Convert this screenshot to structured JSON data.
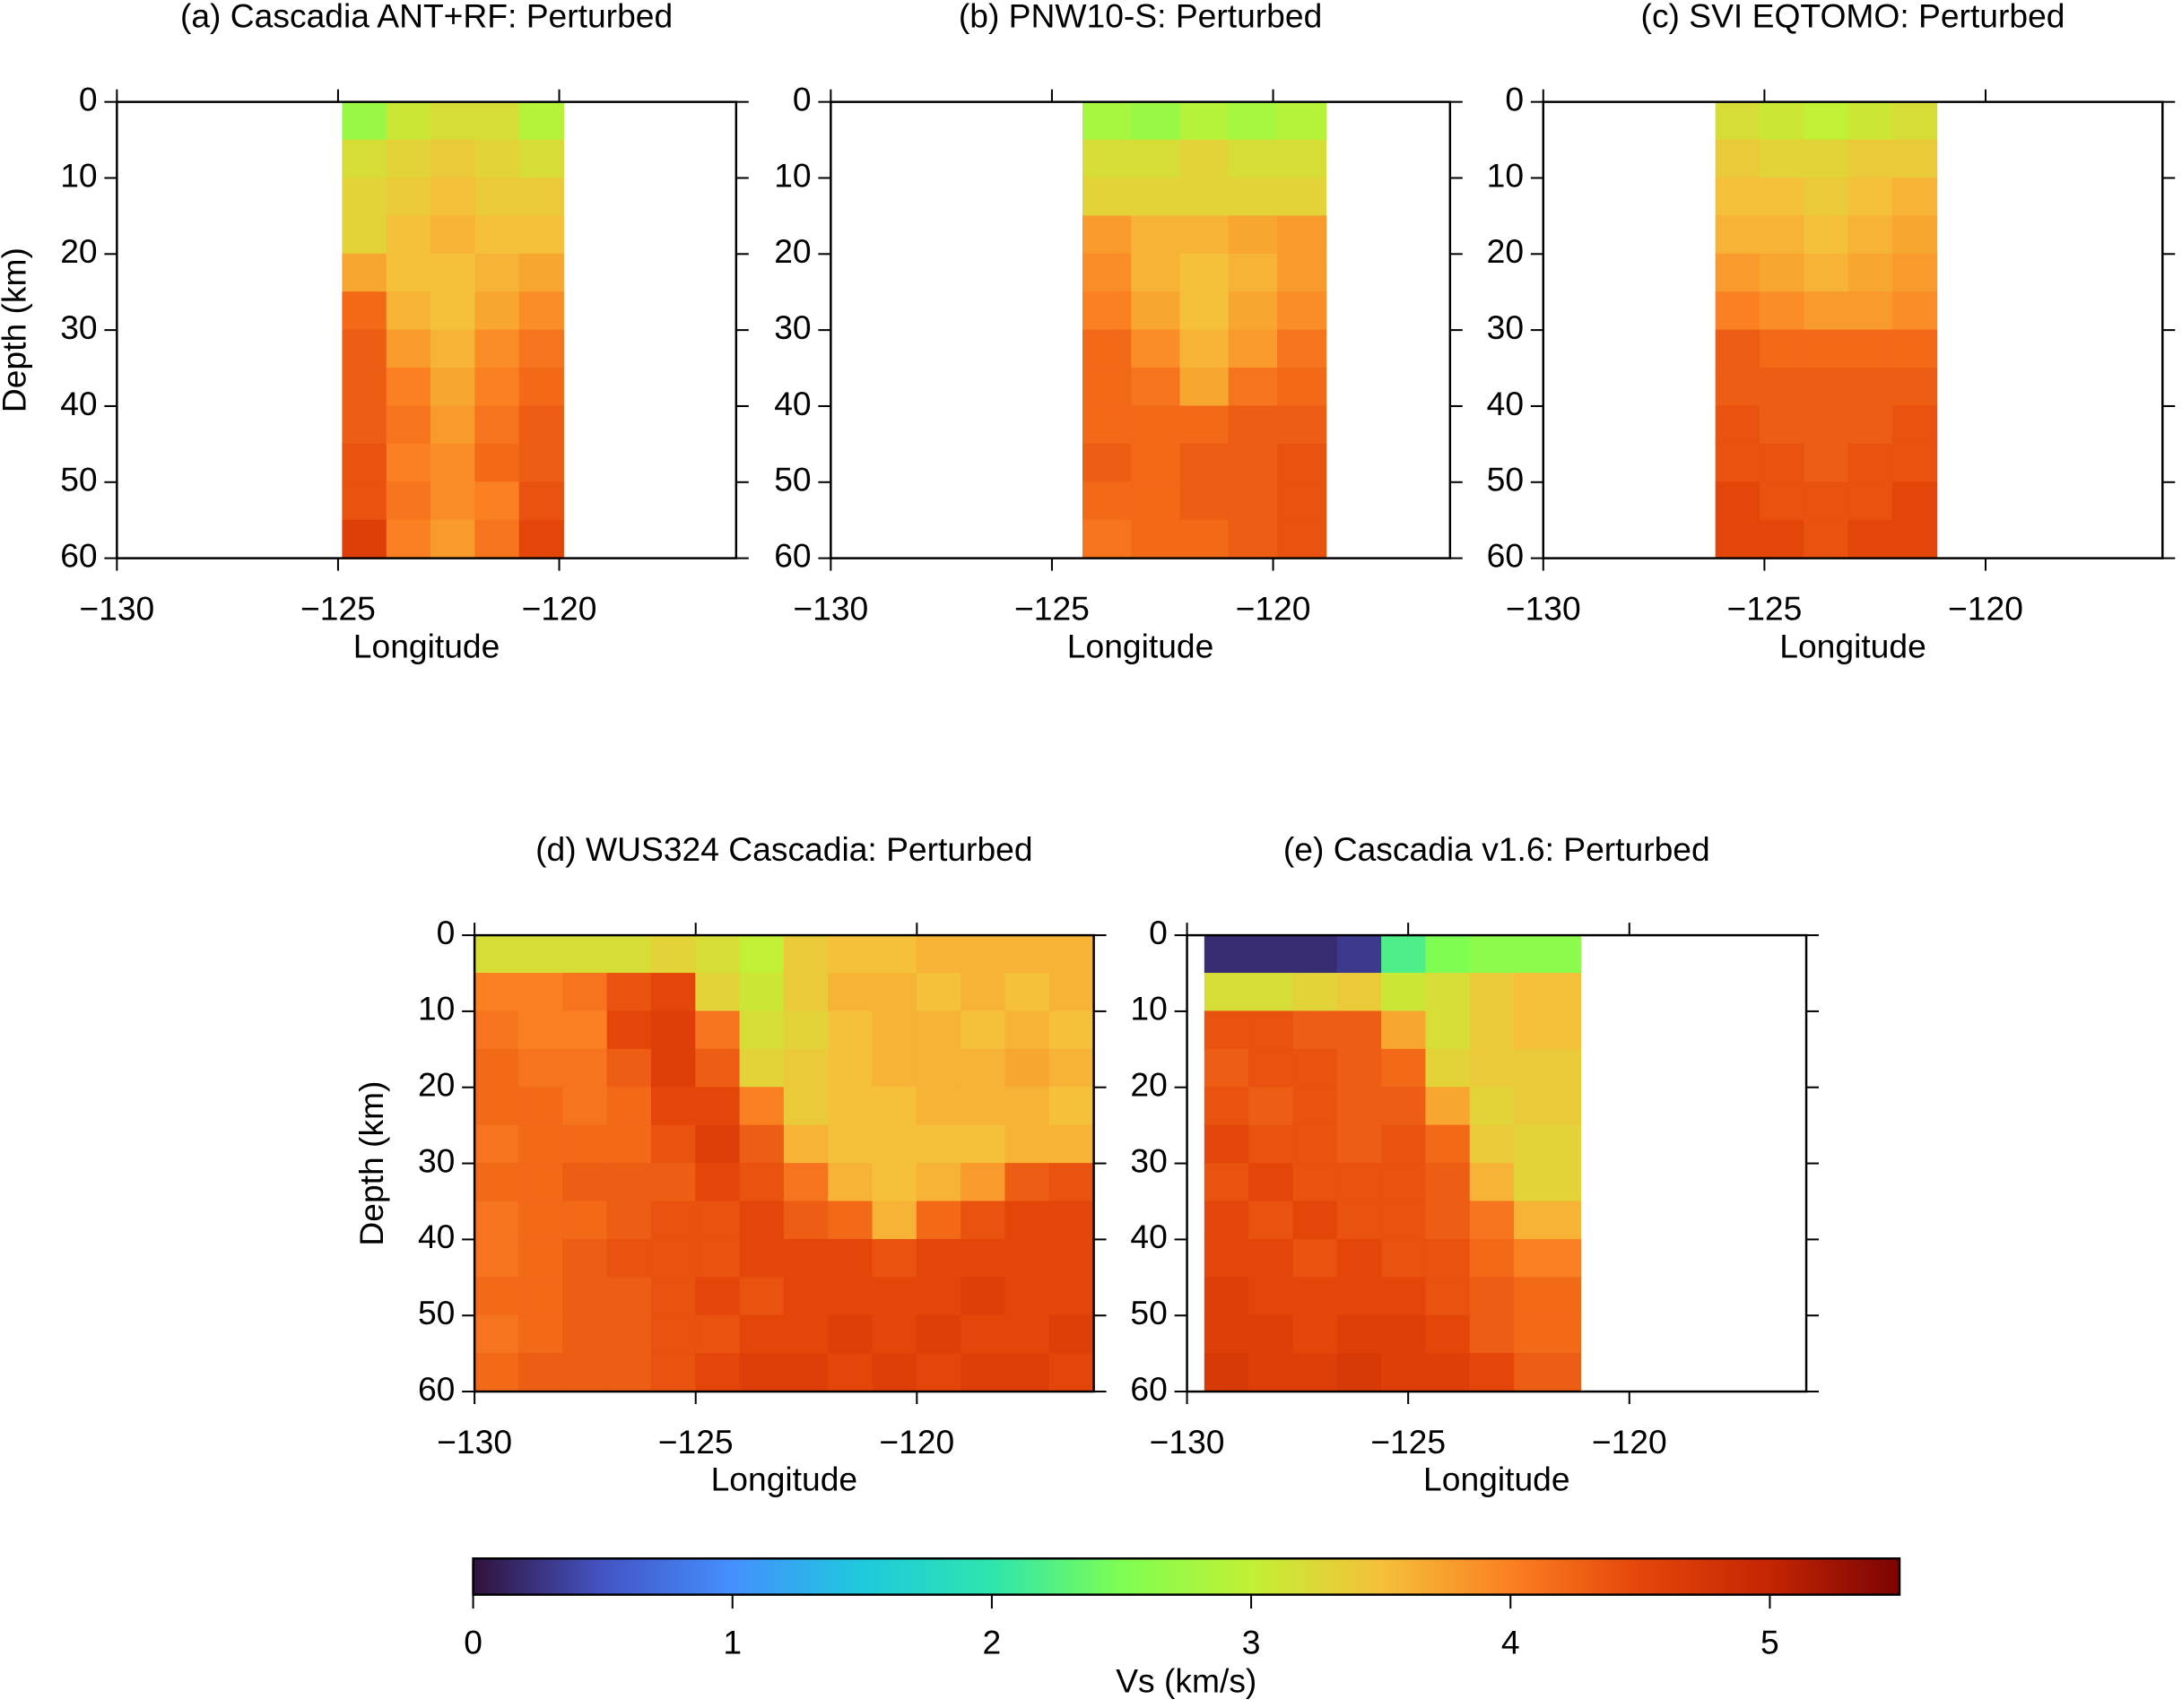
{
  "chart_data": [
    {
      "type": "heatmap",
      "title": "(a) Cascadia ANT+RF: Perturbed",
      "x_label": "Longitude",
      "y_label": "Depth (km)",
      "xlim": [
        -130,
        -116
      ],
      "ylim": [
        0,
        60
      ],
      "y_reversed": true,
      "xticks": [
        {
          "value": -130,
          "label": "−130"
        },
        {
          "value": -125,
          "label": "−125"
        },
        {
          "value": -120,
          "label": "−120"
        }
      ],
      "yticks": [
        0,
        10,
        20,
        30,
        40,
        50,
        60
      ],
      "xbins": [
        -124.9,
        -123.9,
        -122.9,
        -121.9,
        -120.9,
        -119.9
      ],
      "ybins": [
        0,
        5,
        10,
        15,
        20,
        25,
        30,
        35,
        40,
        45,
        50,
        55,
        60
      ],
      "z": [
        [
          2.7,
          3.1,
          3.2,
          3.2,
          2.9
        ],
        [
          3.2,
          3.3,
          3.4,
          3.3,
          3.2
        ],
        [
          3.3,
          3.4,
          3.5,
          3.4,
          3.4
        ],
        [
          3.3,
          3.5,
          3.6,
          3.5,
          3.5
        ],
        [
          3.7,
          3.5,
          3.5,
          3.6,
          3.7
        ],
        [
          4.2,
          3.6,
          3.5,
          3.7,
          3.9
        ],
        [
          4.3,
          3.8,
          3.6,
          3.9,
          4.1
        ],
        [
          4.3,
          4.0,
          3.7,
          4.0,
          4.2
        ],
        [
          4.3,
          4.1,
          3.8,
          4.1,
          4.3
        ],
        [
          4.4,
          4.0,
          3.9,
          4.2,
          4.3
        ],
        [
          4.4,
          4.1,
          3.9,
          4.0,
          4.4
        ],
        [
          4.6,
          4.0,
          3.8,
          4.1,
          4.5
        ]
      ]
    },
    {
      "type": "heatmap",
      "title": "(b) PNW10-S: Perturbed",
      "x_label": "Longitude",
      "xlim": [
        -130,
        -116
      ],
      "ylim": [
        0,
        60
      ],
      "y_reversed": true,
      "xticks": [
        {
          "value": -130,
          "label": "−130"
        },
        {
          "value": -125,
          "label": "−125"
        },
        {
          "value": -120,
          "label": "−120"
        }
      ],
      "yticks": [
        0,
        10,
        20,
        30,
        40,
        50,
        60
      ],
      "xbins": [
        -124.3,
        -123.2,
        -122.1,
        -121.0,
        -119.9,
        -118.8
      ],
      "ybins": [
        0,
        5,
        10,
        15,
        20,
        25,
        30,
        35,
        40,
        45,
        50,
        55,
        60
      ],
      "z": [
        [
          2.8,
          2.7,
          2.9,
          2.8,
          2.9
        ],
        [
          3.2,
          3.2,
          3.3,
          3.2,
          3.2
        ],
        [
          3.3,
          3.3,
          3.3,
          3.3,
          3.3
        ],
        [
          3.8,
          3.6,
          3.6,
          3.7,
          3.8
        ],
        [
          3.9,
          3.6,
          3.5,
          3.6,
          3.8
        ],
        [
          4.0,
          3.7,
          3.5,
          3.7,
          3.9
        ],
        [
          4.2,
          3.9,
          3.6,
          3.8,
          4.1
        ],
        [
          4.2,
          4.1,
          3.7,
          4.1,
          4.2
        ],
        [
          4.2,
          4.2,
          4.2,
          4.3,
          4.3
        ],
        [
          4.3,
          4.2,
          4.3,
          4.3,
          4.4
        ],
        [
          4.2,
          4.2,
          4.3,
          4.3,
          4.4
        ],
        [
          4.1,
          4.2,
          4.2,
          4.3,
          4.4
        ]
      ]
    },
    {
      "type": "heatmap",
      "title": "(c) SVI EQTOMO: Perturbed",
      "x_label": "Longitude",
      "xlim": [
        -130,
        -116
      ],
      "ylim": [
        0,
        60
      ],
      "y_reversed": true,
      "xticks": [
        {
          "value": -130,
          "label": "−130"
        },
        {
          "value": -125,
          "label": "−125"
        },
        {
          "value": -120,
          "label": "−120"
        }
      ],
      "yticks": [
        0,
        10,
        20,
        30,
        40,
        50,
        60
      ],
      "xbins": [
        -126.1,
        -125.1,
        -124.1,
        -123.1,
        -122.1,
        -121.1
      ],
      "ybins": [
        0,
        5,
        10,
        15,
        20,
        25,
        30,
        35,
        40,
        45,
        50,
        55,
        60
      ],
      "z": [
        [
          3.2,
          3.1,
          3.0,
          3.1,
          3.2
        ],
        [
          3.4,
          3.3,
          3.3,
          3.4,
          3.4
        ],
        [
          3.5,
          3.5,
          3.4,
          3.5,
          3.6
        ],
        [
          3.6,
          3.6,
          3.5,
          3.6,
          3.7
        ],
        [
          3.8,
          3.7,
          3.6,
          3.7,
          3.8
        ],
        [
          4.0,
          3.9,
          3.8,
          3.8,
          3.9
        ],
        [
          4.3,
          4.2,
          4.2,
          4.2,
          4.2
        ],
        [
          4.3,
          4.3,
          4.3,
          4.3,
          4.3
        ],
        [
          4.4,
          4.3,
          4.3,
          4.3,
          4.4
        ],
        [
          4.4,
          4.4,
          4.3,
          4.4,
          4.4
        ],
        [
          4.5,
          4.4,
          4.4,
          4.4,
          4.5
        ],
        [
          4.5,
          4.5,
          4.4,
          4.5,
          4.5
        ]
      ]
    },
    {
      "type": "heatmap",
      "title": "(d) WUS324 Cascadia: Perturbed",
      "x_label": "Longitude",
      "y_label": "Depth (km)",
      "xlim": [
        -130,
        -116
      ],
      "ylim": [
        0,
        60
      ],
      "y_reversed": true,
      "xticks": [
        {
          "value": -130,
          "label": "−130"
        },
        {
          "value": -125,
          "label": "−125"
        },
        {
          "value": -120,
          "label": "−120"
        }
      ],
      "yticks": [
        0,
        10,
        20,
        30,
        40,
        50,
        60
      ],
      "xbins": [
        -130,
        -129,
        -128,
        -127,
        -126,
        -125,
        -124,
        -123,
        -122,
        -121,
        -120,
        -119,
        -118,
        -117,
        -116
      ],
      "ybins": [
        0,
        5,
        10,
        15,
        20,
        25,
        30,
        35,
        40,
        45,
        50,
        55,
        60
      ],
      "z": [
        [
          3.2,
          3.2,
          3.2,
          3.2,
          3.3,
          3.2,
          3.0,
          3.4,
          3.5,
          3.5,
          3.6,
          3.6,
          3.6,
          3.6
        ],
        [
          4.0,
          4.0,
          4.1,
          4.4,
          4.5,
          3.3,
          3.1,
          3.4,
          3.6,
          3.6,
          3.5,
          3.6,
          3.5,
          3.6
        ],
        [
          4.1,
          4.0,
          4.0,
          4.5,
          4.6,
          4.1,
          3.2,
          3.3,
          3.5,
          3.6,
          3.6,
          3.5,
          3.6,
          3.5
        ],
        [
          4.2,
          4.1,
          4.1,
          4.3,
          4.6,
          4.3,
          3.3,
          3.4,
          3.5,
          3.6,
          3.6,
          3.6,
          3.7,
          3.6
        ],
        [
          4.2,
          4.2,
          4.1,
          4.2,
          4.5,
          4.5,
          4.0,
          3.4,
          3.5,
          3.5,
          3.6,
          3.6,
          3.6,
          3.5
        ],
        [
          4.1,
          4.2,
          4.2,
          4.2,
          4.4,
          4.6,
          4.3,
          3.6,
          3.5,
          3.5,
          3.5,
          3.5,
          3.6,
          3.6
        ],
        [
          4.2,
          4.2,
          4.3,
          4.3,
          4.3,
          4.5,
          4.4,
          4.1,
          3.6,
          3.5,
          3.6,
          3.8,
          4.3,
          4.4
        ],
        [
          4.1,
          4.2,
          4.2,
          4.3,
          4.4,
          4.4,
          4.5,
          4.3,
          4.2,
          3.6,
          4.2,
          4.4,
          4.5,
          4.5
        ],
        [
          4.1,
          4.2,
          4.3,
          4.4,
          4.4,
          4.4,
          4.5,
          4.5,
          4.5,
          4.4,
          4.5,
          4.5,
          4.5,
          4.5
        ],
        [
          4.2,
          4.2,
          4.3,
          4.3,
          4.4,
          4.5,
          4.4,
          4.5,
          4.5,
          4.5,
          4.5,
          4.6,
          4.5,
          4.5
        ],
        [
          4.1,
          4.2,
          4.3,
          4.3,
          4.4,
          4.4,
          4.5,
          4.5,
          4.6,
          4.5,
          4.6,
          4.5,
          4.5,
          4.6
        ],
        [
          4.2,
          4.3,
          4.3,
          4.3,
          4.4,
          4.5,
          4.6,
          4.6,
          4.5,
          4.6,
          4.5,
          4.6,
          4.6,
          4.5
        ]
      ]
    },
    {
      "type": "heatmap",
      "title": "(e) Cascadia v1.6: Perturbed",
      "x_label": "Longitude",
      "xlim": [
        -130,
        -116
      ],
      "ylim": [
        0,
        60
      ],
      "y_reversed": true,
      "xticks": [
        {
          "value": -130,
          "label": "−130"
        },
        {
          "value": -125,
          "label": "−125"
        },
        {
          "value": -120,
          "label": "−120"
        }
      ],
      "yticks": [
        0,
        10,
        20,
        30,
        40,
        50,
        60
      ],
      "xbins": [
        -129.6,
        -128.6,
        -127.6,
        -126.6,
        -125.6,
        -124.6,
        -123.6,
        -122.6,
        -121.1
      ],
      "ybins": [
        0,
        5,
        10,
        15,
        20,
        25,
        30,
        35,
        40,
        45,
        50,
        55,
        60
      ],
      "z": [
        [
          0.2,
          0.2,
          0.2,
          0.3,
          2.2,
          2.5,
          2.6,
          2.6
        ],
        [
          3.2,
          3.2,
          3.3,
          3.4,
          3.1,
          3.2,
          3.4,
          3.5
        ],
        [
          4.4,
          4.4,
          4.3,
          4.3,
          3.7,
          3.2,
          3.4,
          3.5
        ],
        [
          4.3,
          4.4,
          4.4,
          4.3,
          4.2,
          3.3,
          3.4,
          3.4
        ],
        [
          4.4,
          4.3,
          4.4,
          4.3,
          4.3,
          3.7,
          3.3,
          3.4
        ],
        [
          4.5,
          4.4,
          4.4,
          4.3,
          4.4,
          4.2,
          3.4,
          3.3
        ],
        [
          4.4,
          4.5,
          4.4,
          4.4,
          4.4,
          4.3,
          3.6,
          3.3
        ],
        [
          4.5,
          4.4,
          4.5,
          4.4,
          4.4,
          4.3,
          4.1,
          3.6
        ],
        [
          4.5,
          4.5,
          4.4,
          4.5,
          4.4,
          4.4,
          4.2,
          4.0
        ],
        [
          4.6,
          4.5,
          4.5,
          4.5,
          4.5,
          4.4,
          4.3,
          4.2
        ],
        [
          4.6,
          4.6,
          4.5,
          4.6,
          4.6,
          4.5,
          4.3,
          4.2
        ],
        [
          4.7,
          4.6,
          4.6,
          4.7,
          4.6,
          4.6,
          4.5,
          4.3
        ]
      ]
    }
  ],
  "colorbar": {
    "label": "Vs (km/s)",
    "zlim": [
      0,
      5.5
    ],
    "ticks": [
      0,
      1,
      2,
      3,
      4,
      5
    ],
    "colormap": [
      "#30123b",
      "#4454c4",
      "#4490fe",
      "#1fc9dd",
      "#2ee5ae",
      "#7efe52",
      "#c2f034",
      "#f5c03a",
      "#fb8022",
      "#e4460a",
      "#c42503",
      "#7a0403"
    ]
  }
}
